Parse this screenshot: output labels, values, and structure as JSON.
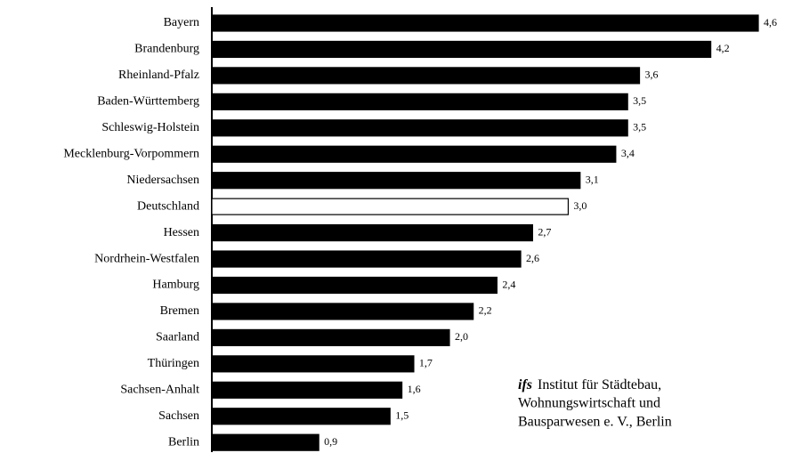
{
  "chart_data": {
    "type": "barh",
    "categories": [
      "Bayern",
      "Brandenburg",
      "Rheinland-Pfalz",
      "Baden-Württemberg",
      "Schleswig-Holstein",
      "Mecklenburg-Vorpommern",
      "Niedersachsen",
      "Deutschland",
      "Hessen",
      "Nordrhein-Westfalen",
      "Hamburg",
      "Bremen",
      "Saarland",
      "Thüringen",
      "Sachsen-Anhalt",
      "Sachsen",
      "Berlin"
    ],
    "values": [
      4.6,
      4.2,
      3.6,
      3.5,
      3.5,
      3.4,
      3.1,
      3.0,
      2.7,
      2.6,
      2.4,
      2.2,
      2.0,
      1.7,
      1.6,
      1.5,
      0.9
    ],
    "value_labels": [
      "4,6",
      "4,2",
      "3,6",
      "3,5",
      "3,5",
      "3,4",
      "3,1",
      "3,0",
      "2,7",
      "2,6",
      "2,4",
      "2,2",
      "2,0",
      "1,7",
      "1,6",
      "1,5",
      "0,9"
    ],
    "colors": [
      "#000000",
      "#000000",
      "#000000",
      "#000000",
      "#000000",
      "#000000",
      "#000000",
      "#ffffff",
      "#000000",
      "#000000",
      "#000000",
      "#000000",
      "#000000",
      "#000000",
      "#000000",
      "#000000",
      "#000000"
    ],
    "annotation": {
      "logo": "ifs",
      "lines": [
        "Institut für Städtebau,",
        "Wohnungswirtschaft und",
        "Bausparwesen e. V., Berlin"
      ]
    }
  }
}
